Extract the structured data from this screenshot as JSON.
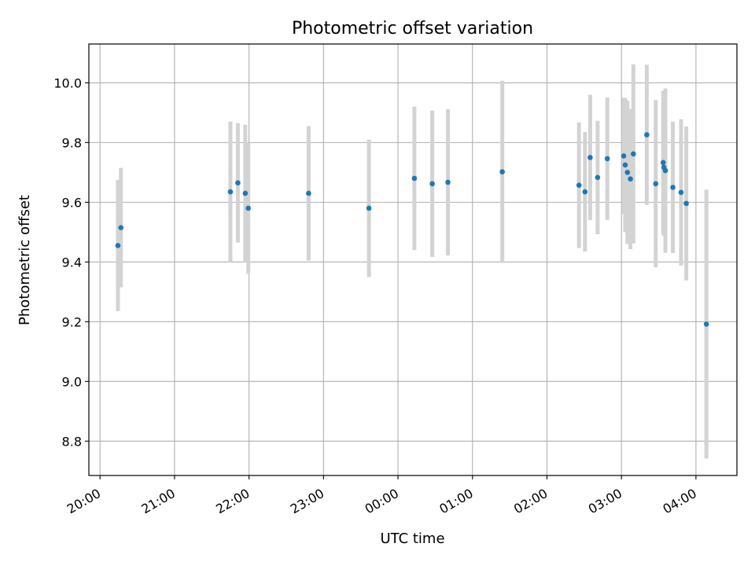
{
  "chart_data": {
    "type": "scatter",
    "title": "Photometric offset variation",
    "xlabel": "UTC time",
    "ylabel": "Photometric offset",
    "x_unit": "UTC time, night starting day 0 (hours; 24+ = next day)",
    "xlim": [
      19.85,
      28.55
    ],
    "ylim": [
      8.685,
      10.13
    ],
    "grid": true,
    "x_ticks": [
      {
        "value": 20,
        "label": "20:00"
      },
      {
        "value": 21,
        "label": "21:00"
      },
      {
        "value": 22,
        "label": "22:00"
      },
      {
        "value": 23,
        "label": "23:00"
      },
      {
        "value": 24,
        "label": "00:00"
      },
      {
        "value": 25,
        "label": "01:00"
      },
      {
        "value": 26,
        "label": "02:00"
      },
      {
        "value": 27,
        "label": "03:00"
      },
      {
        "value": 28,
        "label": "04:00"
      }
    ],
    "y_ticks": [
      {
        "value": 8.8,
        "label": "8.8"
      },
      {
        "value": 9.0,
        "label": "9.0"
      },
      {
        "value": 9.2,
        "label": "9.2"
      },
      {
        "value": 9.4,
        "label": "9.4"
      },
      {
        "value": 9.6,
        "label": "9.6"
      },
      {
        "value": 9.8,
        "label": "9.8"
      },
      {
        "value": 10.0,
        "label": "10.0"
      }
    ],
    "colors": {
      "marker": "#1f77b4",
      "errorbar": "#d3d3d3",
      "grid": "#b0b0b0"
    },
    "points": [
      {
        "x": 20.24,
        "y": 9.455,
        "err": 0.22
      },
      {
        "x": 20.28,
        "y": 9.515,
        "err": 0.2
      },
      {
        "x": 21.75,
        "y": 9.635,
        "err": 0.235
      },
      {
        "x": 21.85,
        "y": 9.665,
        "err": 0.2
      },
      {
        "x": 21.95,
        "y": 9.63,
        "err": 0.23
      },
      {
        "x": 21.99,
        "y": 9.58,
        "err": 0.22
      },
      {
        "x": 22.8,
        "y": 9.63,
        "err": 0.225
      },
      {
        "x": 23.61,
        "y": 9.58,
        "err": 0.23
      },
      {
        "x": 24.22,
        "y": 9.68,
        "err": 0.24
      },
      {
        "x": 24.46,
        "y": 9.662,
        "err": 0.245
      },
      {
        "x": 24.67,
        "y": 9.667,
        "err": 0.245
      },
      {
        "x": 25.4,
        "y": 9.702,
        "err": 0.305
      },
      {
        "x": 26.43,
        "y": 9.657,
        "err": 0.21
      },
      {
        "x": 26.51,
        "y": 9.635,
        "err": 0.2
      },
      {
        "x": 26.58,
        "y": 9.75,
        "err": 0.21
      },
      {
        "x": 26.68,
        "y": 9.683,
        "err": 0.19
      },
      {
        "x": 26.81,
        "y": 9.746,
        "err": 0.205
      },
      {
        "x": 27.03,
        "y": 9.755,
        "err": 0.195
      },
      {
        "x": 27.05,
        "y": 9.725,
        "err": 0.225
      },
      {
        "x": 27.08,
        "y": 9.7,
        "err": 0.24
      },
      {
        "x": 27.12,
        "y": 9.678,
        "err": 0.235
      },
      {
        "x": 27.16,
        "y": 9.762,
        "err": 0.3
      },
      {
        "x": 27.34,
        "y": 9.826,
        "err": 0.235
      },
      {
        "x": 27.46,
        "y": 9.662,
        "err": 0.28
      },
      {
        "x": 27.56,
        "y": 9.733,
        "err": 0.24
      },
      {
        "x": 27.57,
        "y": 9.717,
        "err": 0.23
      },
      {
        "x": 27.59,
        "y": 9.706,
        "err": 0.275
      },
      {
        "x": 27.69,
        "y": 9.65,
        "err": 0.22
      },
      {
        "x": 27.8,
        "y": 9.633,
        "err": 0.245
      },
      {
        "x": 27.87,
        "y": 9.596,
        "err": 0.258
      },
      {
        "x": 28.14,
        "y": 9.192,
        "err": 0.45
      }
    ]
  }
}
